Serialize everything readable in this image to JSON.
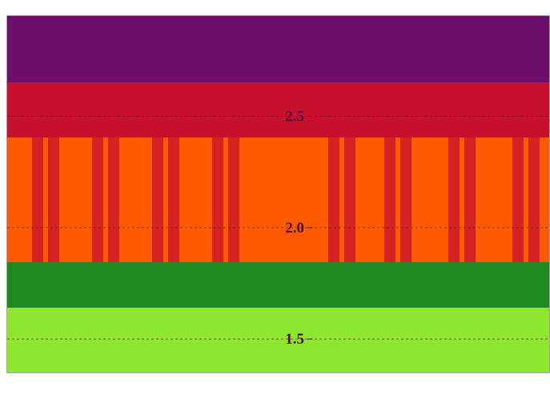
{
  "chart_data": {
    "type": "heatmap",
    "title": "",
    "xlabel": "",
    "ylabel": "",
    "y_tick_labels": [
      "2.5",
      "2.0",
      "1.5"
    ],
    "y_tick_values": [
      2.5,
      2.0,
      1.5
    ],
    "ylim": [
      1.35,
      2.95
    ],
    "colormap": [
      "#6b0f6b",
      "#c8102e",
      "#ff5a00",
      "#1f8a1f",
      "#8fe62e"
    ],
    "grid": true,
    "legend": "none"
  }
}
